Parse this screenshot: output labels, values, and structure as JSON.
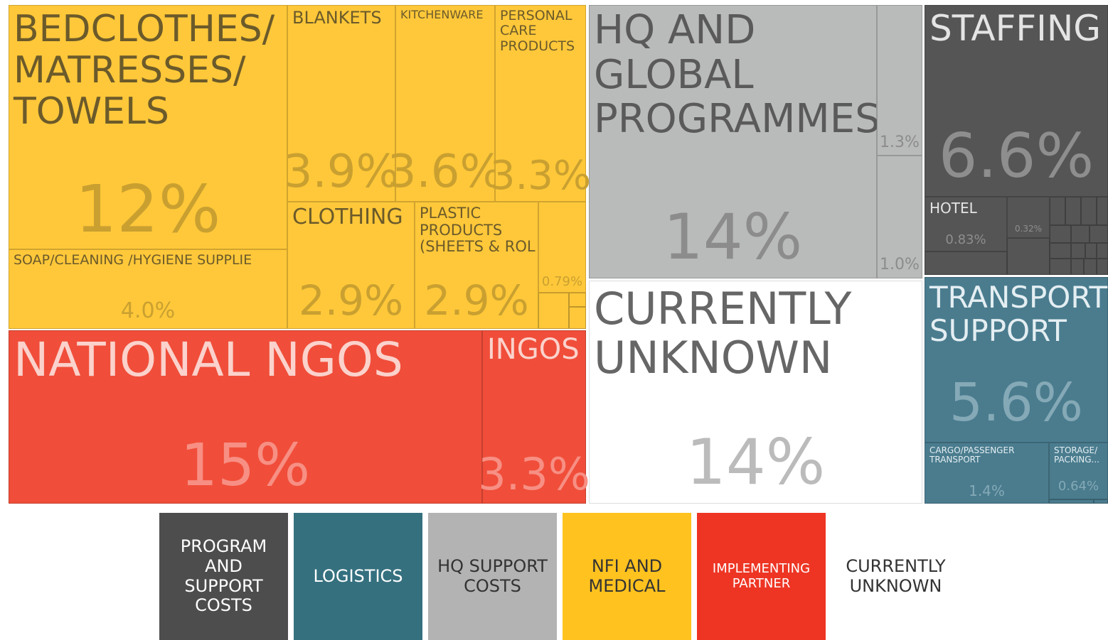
{
  "chart_data": {
    "type": "treemap",
    "groups": [
      {
        "name": "PROGRAM AND SUPPORT COSTS",
        "color": "#555555",
        "items": [
          {
            "name": "STAFFING",
            "value": 6.6,
            "value_label": "6.6%"
          },
          {
            "name": "HOTEL",
            "value": 0.83,
            "value_label": "0.83%"
          },
          {
            "name": null,
            "value": 0.32,
            "value_label": "0.32%"
          }
        ]
      },
      {
        "name": "LOGISTICS",
        "color": "#4a7c8e",
        "items": [
          {
            "name": "TRANSPORT SUPPORT",
            "value": 5.6,
            "value_label": "5.6%"
          },
          {
            "name": "CARGO/PASSENGER TRANSPORT",
            "value": 1.4,
            "value_label": "1.4%"
          },
          {
            "name": "STORAGE/ PACKING...",
            "value": 0.64,
            "value_label": "0.64%"
          }
        ]
      },
      {
        "name": "HQ SUPPORT COSTS",
        "color": "#b9baba",
        "items": [
          {
            "name": "HQ AND GLOBAL PROGRAMMES",
            "value": 14,
            "value_label": "14%"
          },
          {
            "name": null,
            "value": 1.3,
            "value_label": "1.3%"
          },
          {
            "name": null,
            "value": 1.0,
            "value_label": "1.0%"
          }
        ]
      },
      {
        "name": "NFI AND MEDICAL",
        "color": "#ffc83a",
        "items": [
          {
            "name": "BEDCLOTHES/ MATRESSES/ TOWELS",
            "value": 12,
            "value_label": "12%"
          },
          {
            "name": "SOAP/CLEANING /HYGIENE SUPPLIE",
            "value": 4.0,
            "value_label": "4.0%"
          },
          {
            "name": "BLANKETS",
            "value": 3.9,
            "value_label": "3.9%"
          },
          {
            "name": "KITCHENWARE",
            "value": 3.6,
            "value_label": "3.6%"
          },
          {
            "name": "PERSONAL CARE PRODUCTS",
            "value": 3.3,
            "value_label": "3.3%"
          },
          {
            "name": "CLOTHING",
            "value": 2.9,
            "value_label": "2.9%"
          },
          {
            "name": "PLASTIC PRODUCTS (SHEETS & ROL",
            "value": 2.9,
            "value_label": "2.9%"
          },
          {
            "name": null,
            "value": 0.79,
            "value_label": "0.79%"
          }
        ]
      },
      {
        "name": "IMPLEMENTING PARTNER",
        "color": "#f04e3a",
        "items": [
          {
            "name": "NATIONAL NGOS",
            "value": 15,
            "value_label": "15%"
          },
          {
            "name": "INGOS",
            "value": 3.3,
            "value_label": "3.3%"
          }
        ]
      },
      {
        "name": "CURRENTLY UNKNOWN",
        "color": "#ffffff",
        "items": [
          {
            "name": "CURRENTLY UNKNOWN",
            "value": 14,
            "value_label": "14%"
          }
        ]
      }
    ]
  }
}
